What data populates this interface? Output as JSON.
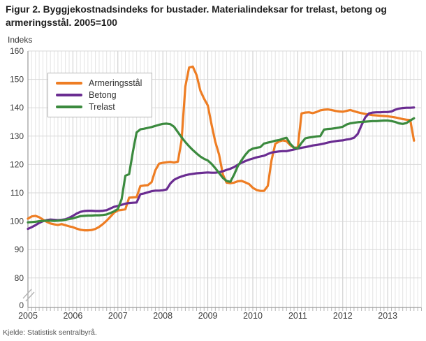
{
  "title": "Figur 2. Byggjekostnadsindeks for bustader. Materialindeksar for trelast, betong og armeringsstål. 2005=100",
  "y_axis_unit": "Indeks",
  "source": "Kjelde: Statistisk sentralbyrå.",
  "chart_data": {
    "type": "line",
    "frequency": "monthly",
    "x_start": "2005-01",
    "x_end": "2013-08",
    "x_tick_labels": [
      "2005",
      "2006",
      "2007",
      "2008",
      "2009",
      "2010",
      "2011",
      "2012",
      "2013"
    ],
    "y_ticks": [
      160,
      150,
      140,
      130,
      120,
      110,
      100,
      90,
      80
    ],
    "y_break_label": "0",
    "ylim": [
      80,
      160
    ],
    "grid": "monthly vertical + 10-unit horizontal",
    "legend_position": "top-left",
    "title": "Figur 2. Byggjekostnadsindeks for bustader. Materialindeksar for trelast, betong og armeringsstål. 2005=100",
    "ylabel": "Indeks",
    "series": [
      {
        "name": "Armeringsstål",
        "color": "#ee7d23",
        "values": [
          100.9,
          101.7,
          101.9,
          101.4,
          100.6,
          99.8,
          99.2,
          98.9,
          98.7,
          99.0,
          98.6,
          98.2,
          97.9,
          97.4,
          97.0,
          96.8,
          96.8,
          96.9,
          97.3,
          98.0,
          99.0,
          100.2,
          101.6,
          103.0,
          103.8,
          104.0,
          104.2,
          108.3,
          108.4,
          108.5,
          112.4,
          112.6,
          112.7,
          113.8,
          118.0,
          120.3,
          120.6,
          120.8,
          120.9,
          120.7,
          121.0,
          128.5,
          147.5,
          154.2,
          154.5,
          151.5,
          146.0,
          143.2,
          140.8,
          134.0,
          128.0,
          123.5,
          116.5,
          113.6,
          113.4,
          113.6,
          114.1,
          114.2,
          113.7,
          113.1,
          111.8,
          111.0,
          110.7,
          110.7,
          112.5,
          121.5,
          127.3,
          128.1,
          128.5,
          128.2,
          126.8,
          125.9,
          126.0,
          138.0,
          138.3,
          138.4,
          138.1,
          138.5,
          139.1,
          139.3,
          139.4,
          139.2,
          138.9,
          138.7,
          138.6,
          138.9,
          139.2,
          138.8,
          138.4,
          138.1,
          137.8,
          137.6,
          137.4,
          137.3,
          137.2,
          137.1,
          137.0,
          136.8,
          136.6,
          136.3,
          136.0,
          135.8,
          135.7,
          128.4
        ]
      },
      {
        "name": "Betong",
        "color": "#6a2c91",
        "values": [
          97.3,
          97.9,
          98.6,
          99.4,
          100.0,
          100.4,
          100.6,
          100.5,
          100.4,
          100.5,
          100.7,
          101.2,
          101.9,
          102.7,
          103.3,
          103.6,
          103.7,
          103.7,
          103.6,
          103.6,
          103.7,
          103.9,
          104.5,
          105.1,
          105.4,
          105.8,
          106.2,
          106.4,
          106.5,
          106.6,
          109.5,
          109.8,
          110.2,
          110.6,
          110.8,
          110.8,
          110.9,
          111.2,
          113.3,
          114.6,
          115.3,
          115.8,
          116.2,
          116.5,
          116.7,
          116.9,
          117.0,
          117.1,
          117.2,
          117.1,
          117.1,
          117.3,
          117.6,
          118.1,
          118.5,
          119.1,
          119.9,
          120.6,
          121.2,
          121.7,
          122.1,
          122.5,
          122.8,
          123.1,
          123.7,
          124.2,
          124.4,
          124.6,
          124.7,
          124.7,
          125.0,
          125.3,
          125.6,
          125.9,
          126.1,
          126.4,
          126.7,
          126.9,
          127.1,
          127.4,
          127.7,
          128.0,
          128.2,
          128.4,
          128.5,
          128.8,
          129.0,
          129.4,
          130.8,
          133.8,
          136.6,
          138.0,
          138.3,
          138.4,
          138.4,
          138.5,
          138.5,
          138.7,
          139.3,
          139.7,
          139.9,
          140.0,
          140.0,
          140.1
        ]
      },
      {
        "name": "Trelast",
        "color": "#3b8a3e",
        "values": [
          99.6,
          99.7,
          99.8,
          100.0,
          100.1,
          100.2,
          100.2,
          100.1,
          100.2,
          100.3,
          100.5,
          100.8,
          101.0,
          101.4,
          101.8,
          101.9,
          102.0,
          102.0,
          102.1,
          102.1,
          102.2,
          102.4,
          102.9,
          103.5,
          104.3,
          107.8,
          116.0,
          116.6,
          124.5,
          131.3,
          132.4,
          132.6,
          132.9,
          133.2,
          133.6,
          134.0,
          134.3,
          134.4,
          134.2,
          133.3,
          131.4,
          129.6,
          127.9,
          126.4,
          125.1,
          123.9,
          122.8,
          122.0,
          121.4,
          120.2,
          118.7,
          117.0,
          115.3,
          114.2,
          113.9,
          116.4,
          119.4,
          121.5,
          123.4,
          124.9,
          125.6,
          125.9,
          126.1,
          127.4,
          127.7,
          128.0,
          128.4,
          128.6,
          129.1,
          129.4,
          127.3,
          125.9,
          125.7,
          127.6,
          129.2,
          129.5,
          129.7,
          129.9,
          130.0,
          132.3,
          132.5,
          132.6,
          132.8,
          133.0,
          133.3,
          134.1,
          134.5,
          134.7,
          134.9,
          135.0,
          135.1,
          135.2,
          135.3,
          135.3,
          135.4,
          135.5,
          135.5,
          135.3,
          135.0,
          134.5,
          134.3,
          134.6,
          135.5,
          136.3
        ]
      }
    ]
  }
}
